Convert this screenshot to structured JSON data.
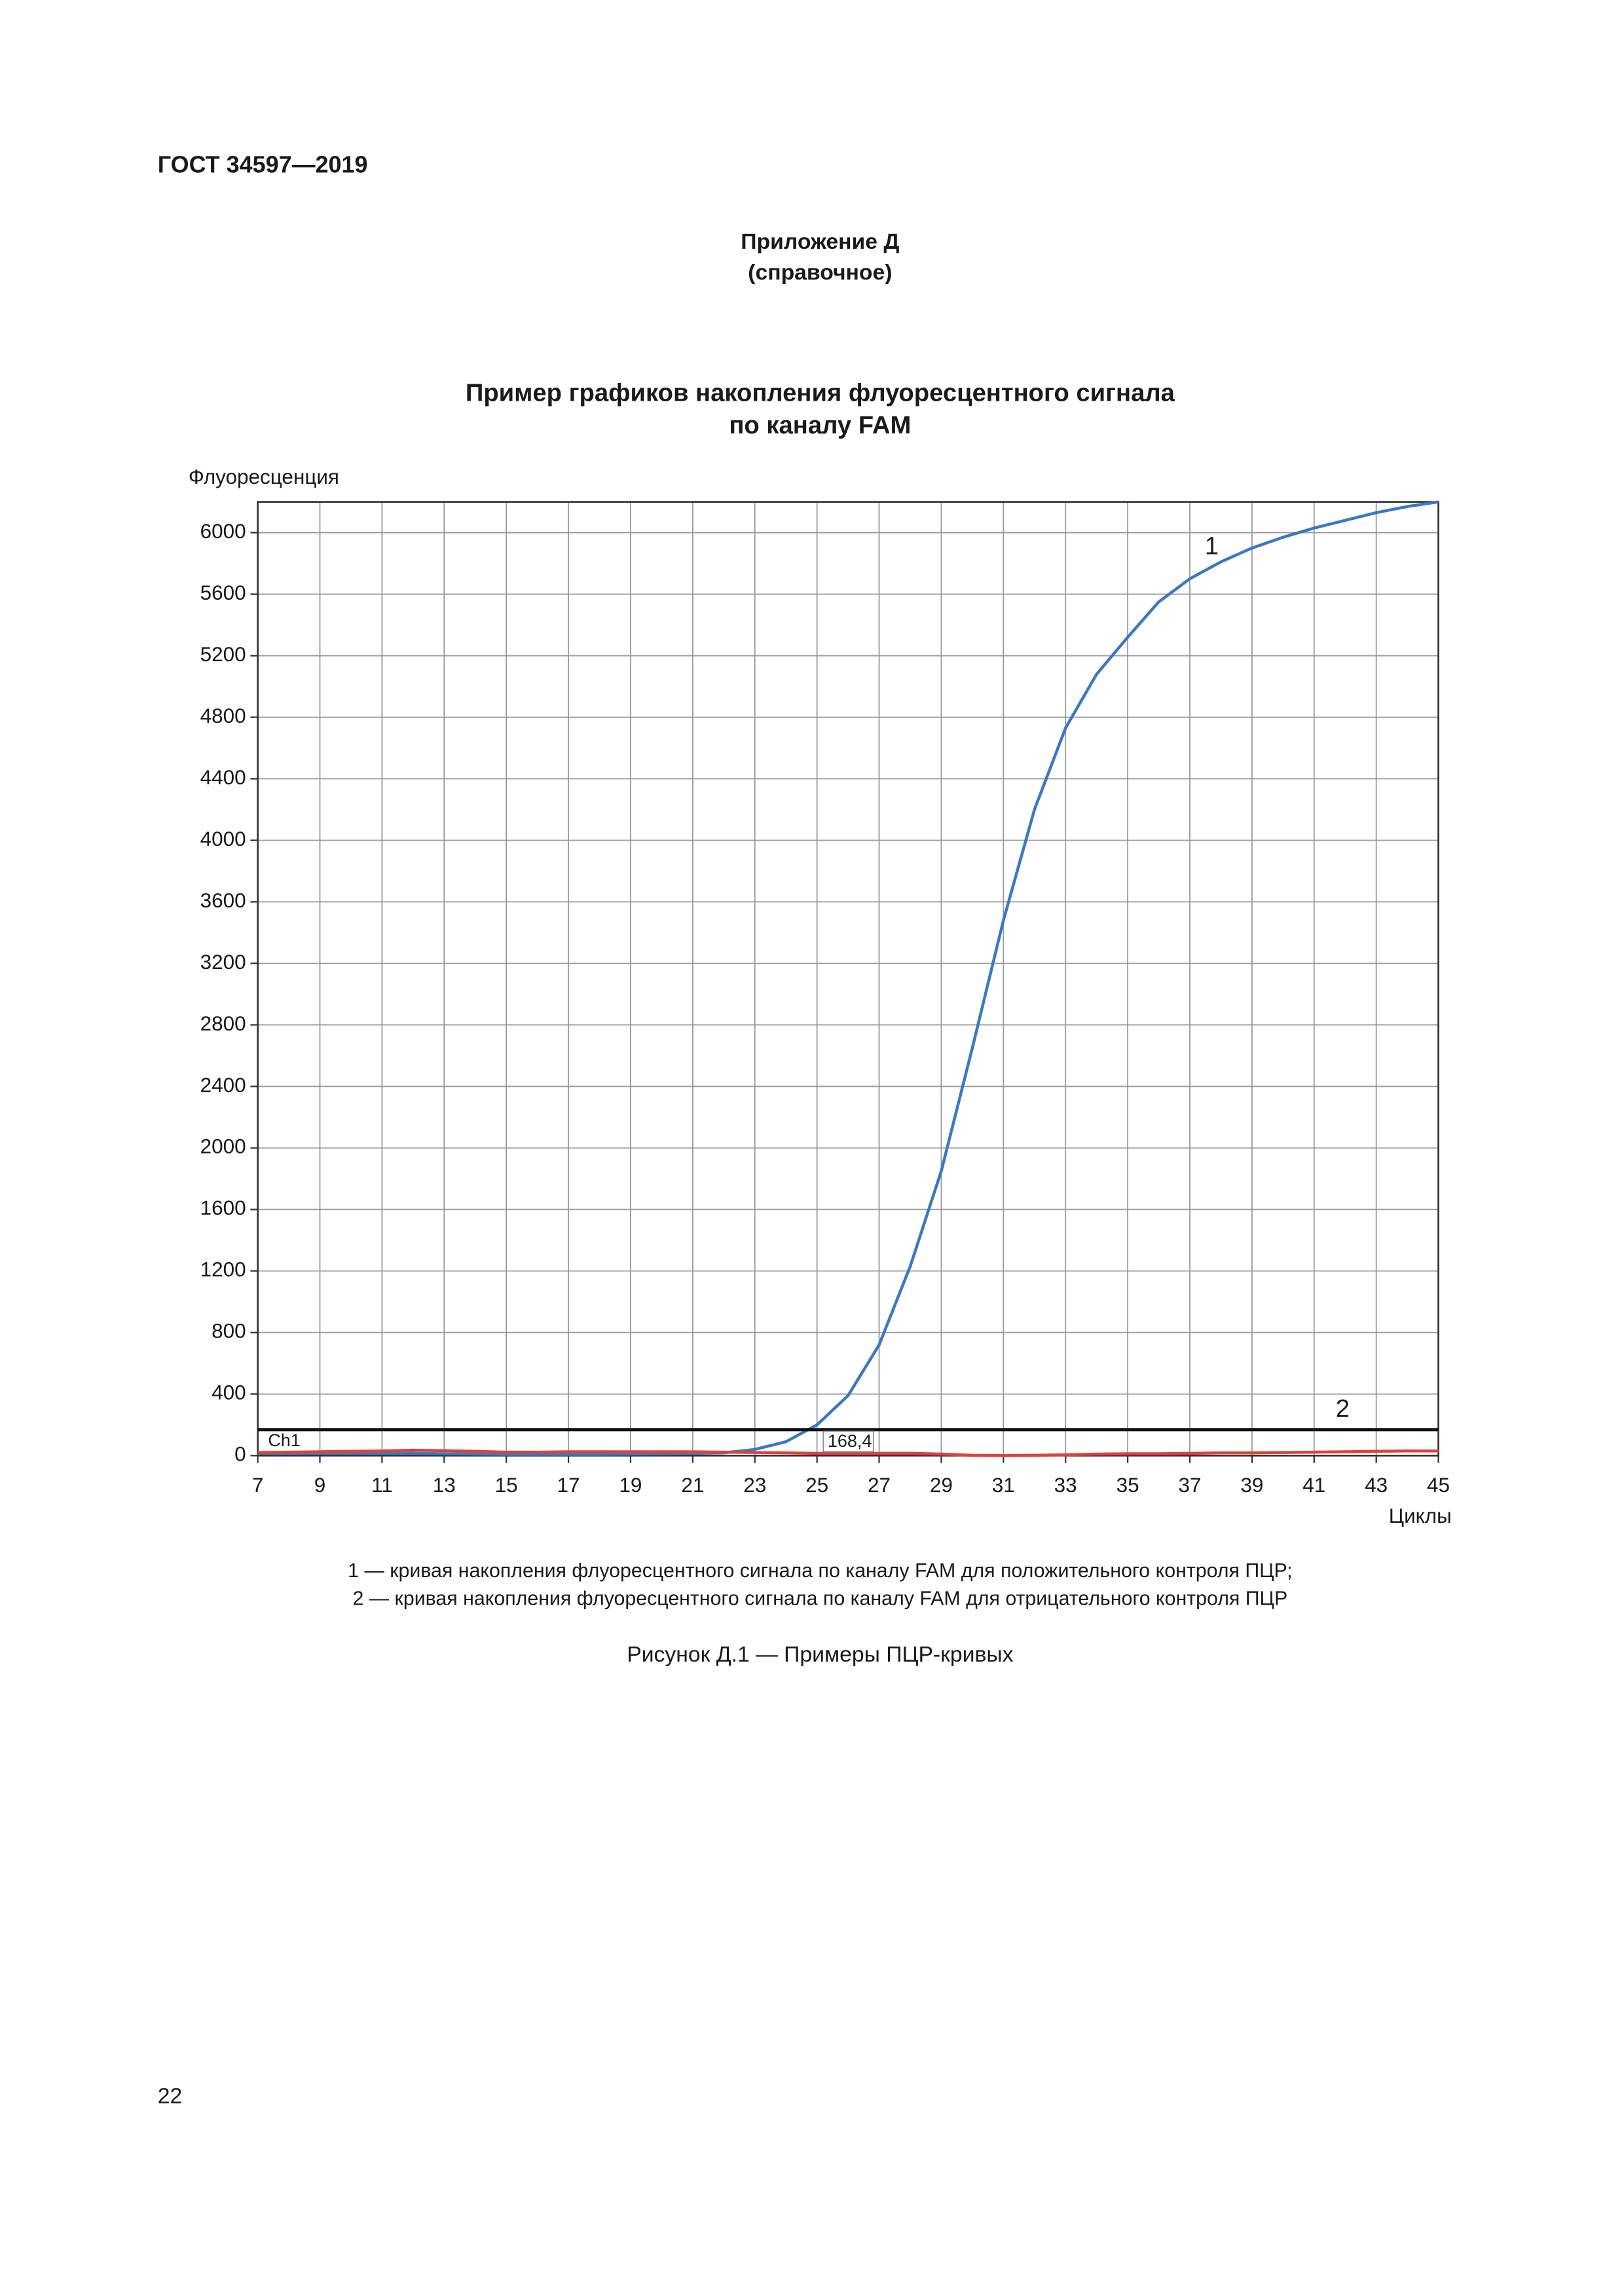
{
  "header": {
    "standard": "ГОСТ 34597—2019"
  },
  "appendix": {
    "title": "Приложение Д",
    "subtitle": "(справочное)"
  },
  "chart_data": {
    "type": "line",
    "title": [
      "Пример графиков накопления флуоресцентного сигнала",
      "по каналу FAM"
    ],
    "y_label": "Флуоресценция",
    "x_label": "Циклы",
    "x": [
      7,
      8,
      9,
      10,
      11,
      12,
      13,
      14,
      15,
      16,
      17,
      18,
      19,
      20,
      21,
      22,
      23,
      24,
      25,
      26,
      27,
      28,
      29,
      30,
      31,
      32,
      33,
      34,
      35,
      36,
      37,
      38,
      39,
      40,
      41,
      42,
      43,
      44,
      45
    ],
    "series": [
      {
        "name": "1",
        "color": "#3b78c2",
        "values": [
          15,
          15,
          15,
          15,
          15,
          15,
          12,
          10,
          8,
          8,
          8,
          8,
          10,
          12,
          15,
          18,
          40,
          90,
          200,
          390,
          720,
          1230,
          1850,
          2650,
          3480,
          4200,
          4730,
          5080,
          5320,
          5550,
          5700,
          5810,
          5900,
          5970,
          6030,
          6080,
          6130,
          6170,
          6200
        ]
      },
      {
        "name": "2",
        "color": "#e0403c",
        "values": [
          20,
          22,
          25,
          28,
          30,
          35,
          32,
          28,
          22,
          22,
          25,
          25,
          25,
          25,
          25,
          22,
          20,
          18,
          15,
          15,
          15,
          15,
          10,
          2,
          0,
          2,
          5,
          10,
          12,
          12,
          15,
          18,
          18,
          20,
          22,
          25,
          28,
          30,
          30
        ]
      }
    ],
    "threshold": {
      "name": "Ch1",
      "value": 168.4,
      "label": "168,4"
    },
    "xlim": [
      7,
      45
    ],
    "ylim": [
      0,
      6200
    ],
    "xticks": [
      7,
      9,
      11,
      13,
      15,
      17,
      19,
      21,
      23,
      25,
      27,
      29,
      31,
      33,
      35,
      37,
      39,
      41,
      43,
      45
    ],
    "yticks": [
      0,
      400,
      800,
      1200,
      1600,
      2000,
      2400,
      2800,
      3200,
      3600,
      4000,
      4400,
      4800,
      5200,
      5600,
      6000
    ],
    "grid": true
  },
  "notes": [
    "1 — кривая накопления флуоресцентного сигнала по каналу FAM для положительного контроля ПЦР;",
    "2 — кривая накопления флуоресцентного сигнала по каналу FAM для отрицательного контроля ПЦР"
  ],
  "caption": "Рисунок Д.1 — Примеры ПЦР-кривых",
  "page_number": "22"
}
